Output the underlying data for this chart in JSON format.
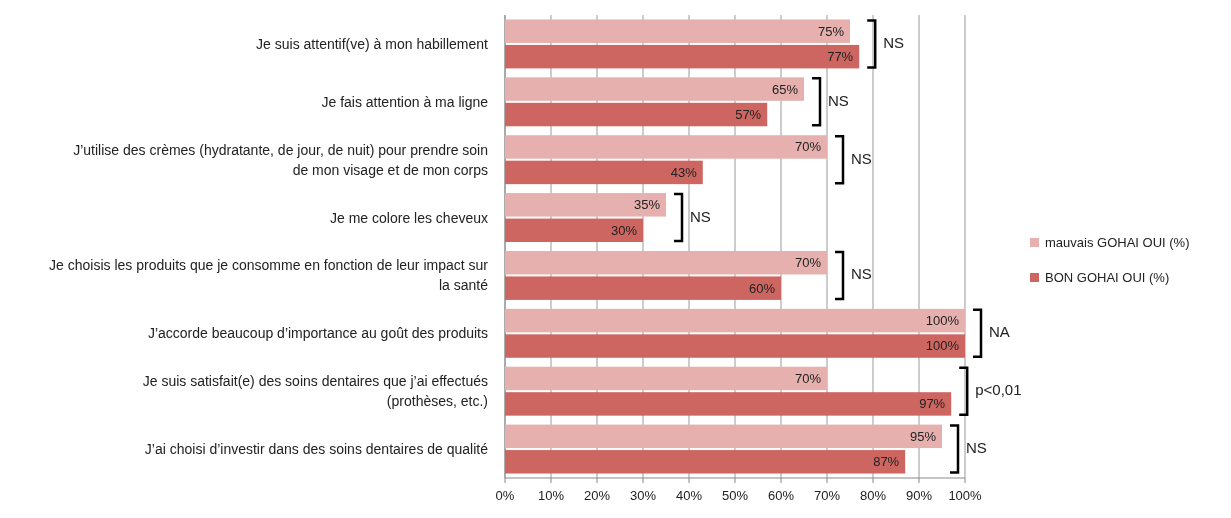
{
  "chart_data": {
    "type": "bar",
    "orientation": "horizontal",
    "categories": [
      "Je suis attentif(ve) à mon habillement",
      "Je fais attention à ma ligne",
      "J’utilise des crèmes (hydratante, de jour, de nuit) pour prendre soin de mon visage et de mon corps",
      "Je me colore les cheveux",
      "Je choisis les produits que je consomme en fonction de leur impact sur la santé",
      "J’accorde beaucoup d’importance au goût des produits",
      "Je suis satisfait(e) des soins dentaires que j’ai effectués (prothèses, etc.)",
      "J’ai choisi d’investir dans des soins dentaires de qualité"
    ],
    "series": [
      {
        "name": "mauvais GOHAI OUI (%)",
        "color": "#e6b0ae",
        "values": [
          75,
          65,
          70,
          35,
          70,
          100,
          70,
          95
        ],
        "value_labels": [
          "75%",
          "65%",
          "70%",
          "35%",
          "70%",
          "100%",
          "70%",
          "95%"
        ]
      },
      {
        "name": "BON GOHAI OUI (%)",
        "color": "#cd6661",
        "values": [
          77,
          57,
          43,
          30,
          60,
          100,
          97,
          87
        ],
        "value_labels": [
          "77%",
          "57%",
          "43%",
          "30%",
          "60%",
          "100%",
          "97%",
          "87%"
        ]
      }
    ],
    "xlim": [
      0,
      100
    ],
    "xticks": [
      {
        "value": 0,
        "label": "0%"
      },
      {
        "value": 10,
        "label": "10%"
      },
      {
        "value": 20,
        "label": "20%"
      },
      {
        "value": 30,
        "label": "30%"
      },
      {
        "value": 40,
        "label": "40%"
      },
      {
        "value": 50,
        "label": "50%"
      },
      {
        "value": 60,
        "label": "60%"
      },
      {
        "value": 70,
        "label": "70%"
      },
      {
        "value": 80,
        "label": "80%"
      },
      {
        "value": 90,
        "label": "90%"
      },
      {
        "value": 100,
        "label": "100%"
      }
    ],
    "grid": "x",
    "legend": "right",
    "annotations": [
      "NS",
      "NS",
      "NS",
      "NS",
      "NS",
      "NA",
      "p<0,01",
      "NS"
    ]
  }
}
